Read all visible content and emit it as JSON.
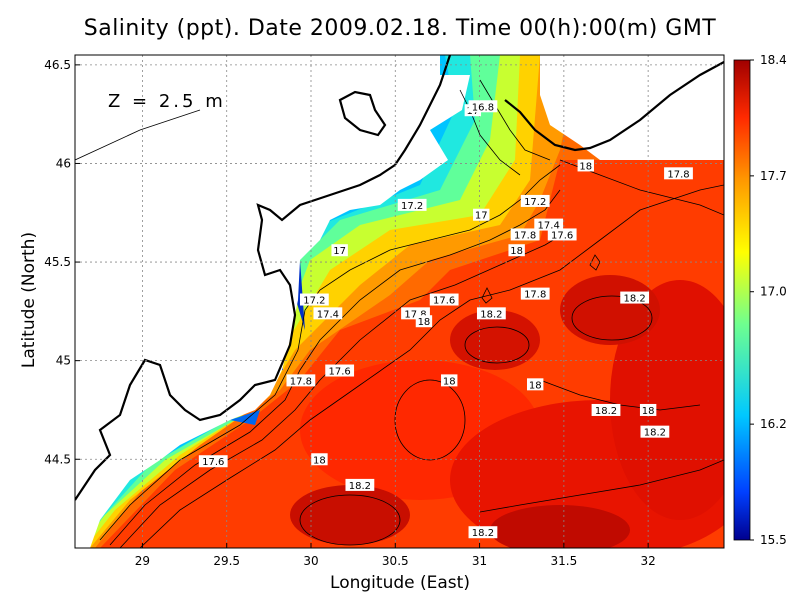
{
  "title": "Salinity (ppt). Date 2009.02.18. Time 00(h):00(m) GMT",
  "depth_label": "Z = 2.5 m",
  "chart_data": {
    "type": "heatmap",
    "title": "Salinity (ppt). Date 2009.02.18. Time 00(h):00(m) GMT",
    "xlabel": "Longitude (East)",
    "ylabel": "Latitude (North)",
    "xlim": [
      28.6,
      32.45
    ],
    "ylim": [
      44.05,
      46.55
    ],
    "x_ticks": [
      29,
      29.5,
      30,
      30.5,
      31,
      31.5,
      32
    ],
    "x_tick_labels": [
      "29",
      "29.5",
      "30",
      "30.5",
      "31",
      "31.5",
      "32"
    ],
    "y_ticks": [
      44.5,
      45,
      45.5,
      46,
      46.5
    ],
    "y_tick_labels": [
      "44.5",
      "45",
      "45.5",
      "46",
      "46.5"
    ],
    "grid": true,
    "colorbar": {
      "min": 15.5,
      "max": 18.4,
      "ticks": [
        15.5,
        16.2,
        17.0,
        17.7,
        18.4
      ],
      "tick_labels": [
        "15.5",
        "16.2",
        "17.0",
        "17.7",
        "18.4"
      ],
      "colors": [
        "#00008f",
        "#0050ff",
        "#00d8ff",
        "#7fff7f",
        "#ffff00",
        "#ff9000",
        "#ff2000",
        "#a00000"
      ]
    },
    "contour_labels": [
      {
        "lon": 30.96,
        "lat": 46.27,
        "text": "17"
      },
      {
        "lon": 31.02,
        "lat": 46.29,
        "text": "16.8"
      },
      {
        "lon": 31.63,
        "lat": 45.99,
        "text": "18"
      },
      {
        "lon": 32.18,
        "lat": 45.95,
        "text": "17.8"
      },
      {
        "lon": 30.6,
        "lat": 45.79,
        "text": "17.2"
      },
      {
        "lon": 31.33,
        "lat": 45.81,
        "text": "17.2"
      },
      {
        "lon": 31.01,
        "lat": 45.74,
        "text": "17"
      },
      {
        "lon": 31.41,
        "lat": 45.69,
        "text": "17.4"
      },
      {
        "lon": 31.49,
        "lat": 45.64,
        "text": "17.6"
      },
      {
        "lon": 31.27,
        "lat": 45.64,
        "text": "17.8"
      },
      {
        "lon": 31.22,
        "lat": 45.56,
        "text": "18"
      },
      {
        "lon": 30.17,
        "lat": 45.56,
        "text": "17"
      },
      {
        "lon": 31.33,
        "lat": 45.34,
        "text": "17.8"
      },
      {
        "lon": 31.92,
        "lat": 45.32,
        "text": "18.2"
      },
      {
        "lon": 30.79,
        "lat": 45.31,
        "text": "17.6"
      },
      {
        "lon": 30.02,
        "lat": 45.31,
        "text": "17.2"
      },
      {
        "lon": 30.1,
        "lat": 45.24,
        "text": "17.4"
      },
      {
        "lon": 30.62,
        "lat": 45.24,
        "text": "17.8"
      },
      {
        "lon": 30.67,
        "lat": 45.2,
        "text": "18"
      },
      {
        "lon": 31.07,
        "lat": 45.24,
        "text": "18.2"
      },
      {
        "lon": 30.17,
        "lat": 44.95,
        "text": "17.6"
      },
      {
        "lon": 29.94,
        "lat": 44.9,
        "text": "17.8"
      },
      {
        "lon": 30.82,
        "lat": 44.9,
        "text": "18"
      },
      {
        "lon": 31.33,
        "lat": 44.88,
        "text": "18"
      },
      {
        "lon": 31.75,
        "lat": 44.75,
        "text": "18.2"
      },
      {
        "lon": 32.0,
        "lat": 44.75,
        "text": "18"
      },
      {
        "lon": 32.04,
        "lat": 44.64,
        "text": "18.2"
      },
      {
        "lon": 29.42,
        "lat": 44.49,
        "text": "17.6"
      },
      {
        "lon": 30.05,
        "lat": 44.5,
        "text": "18"
      },
      {
        "lon": 30.29,
        "lat": 44.37,
        "text": "18.2"
      },
      {
        "lon": 31.02,
        "lat": 44.13,
        "text": "18.2"
      }
    ]
  }
}
